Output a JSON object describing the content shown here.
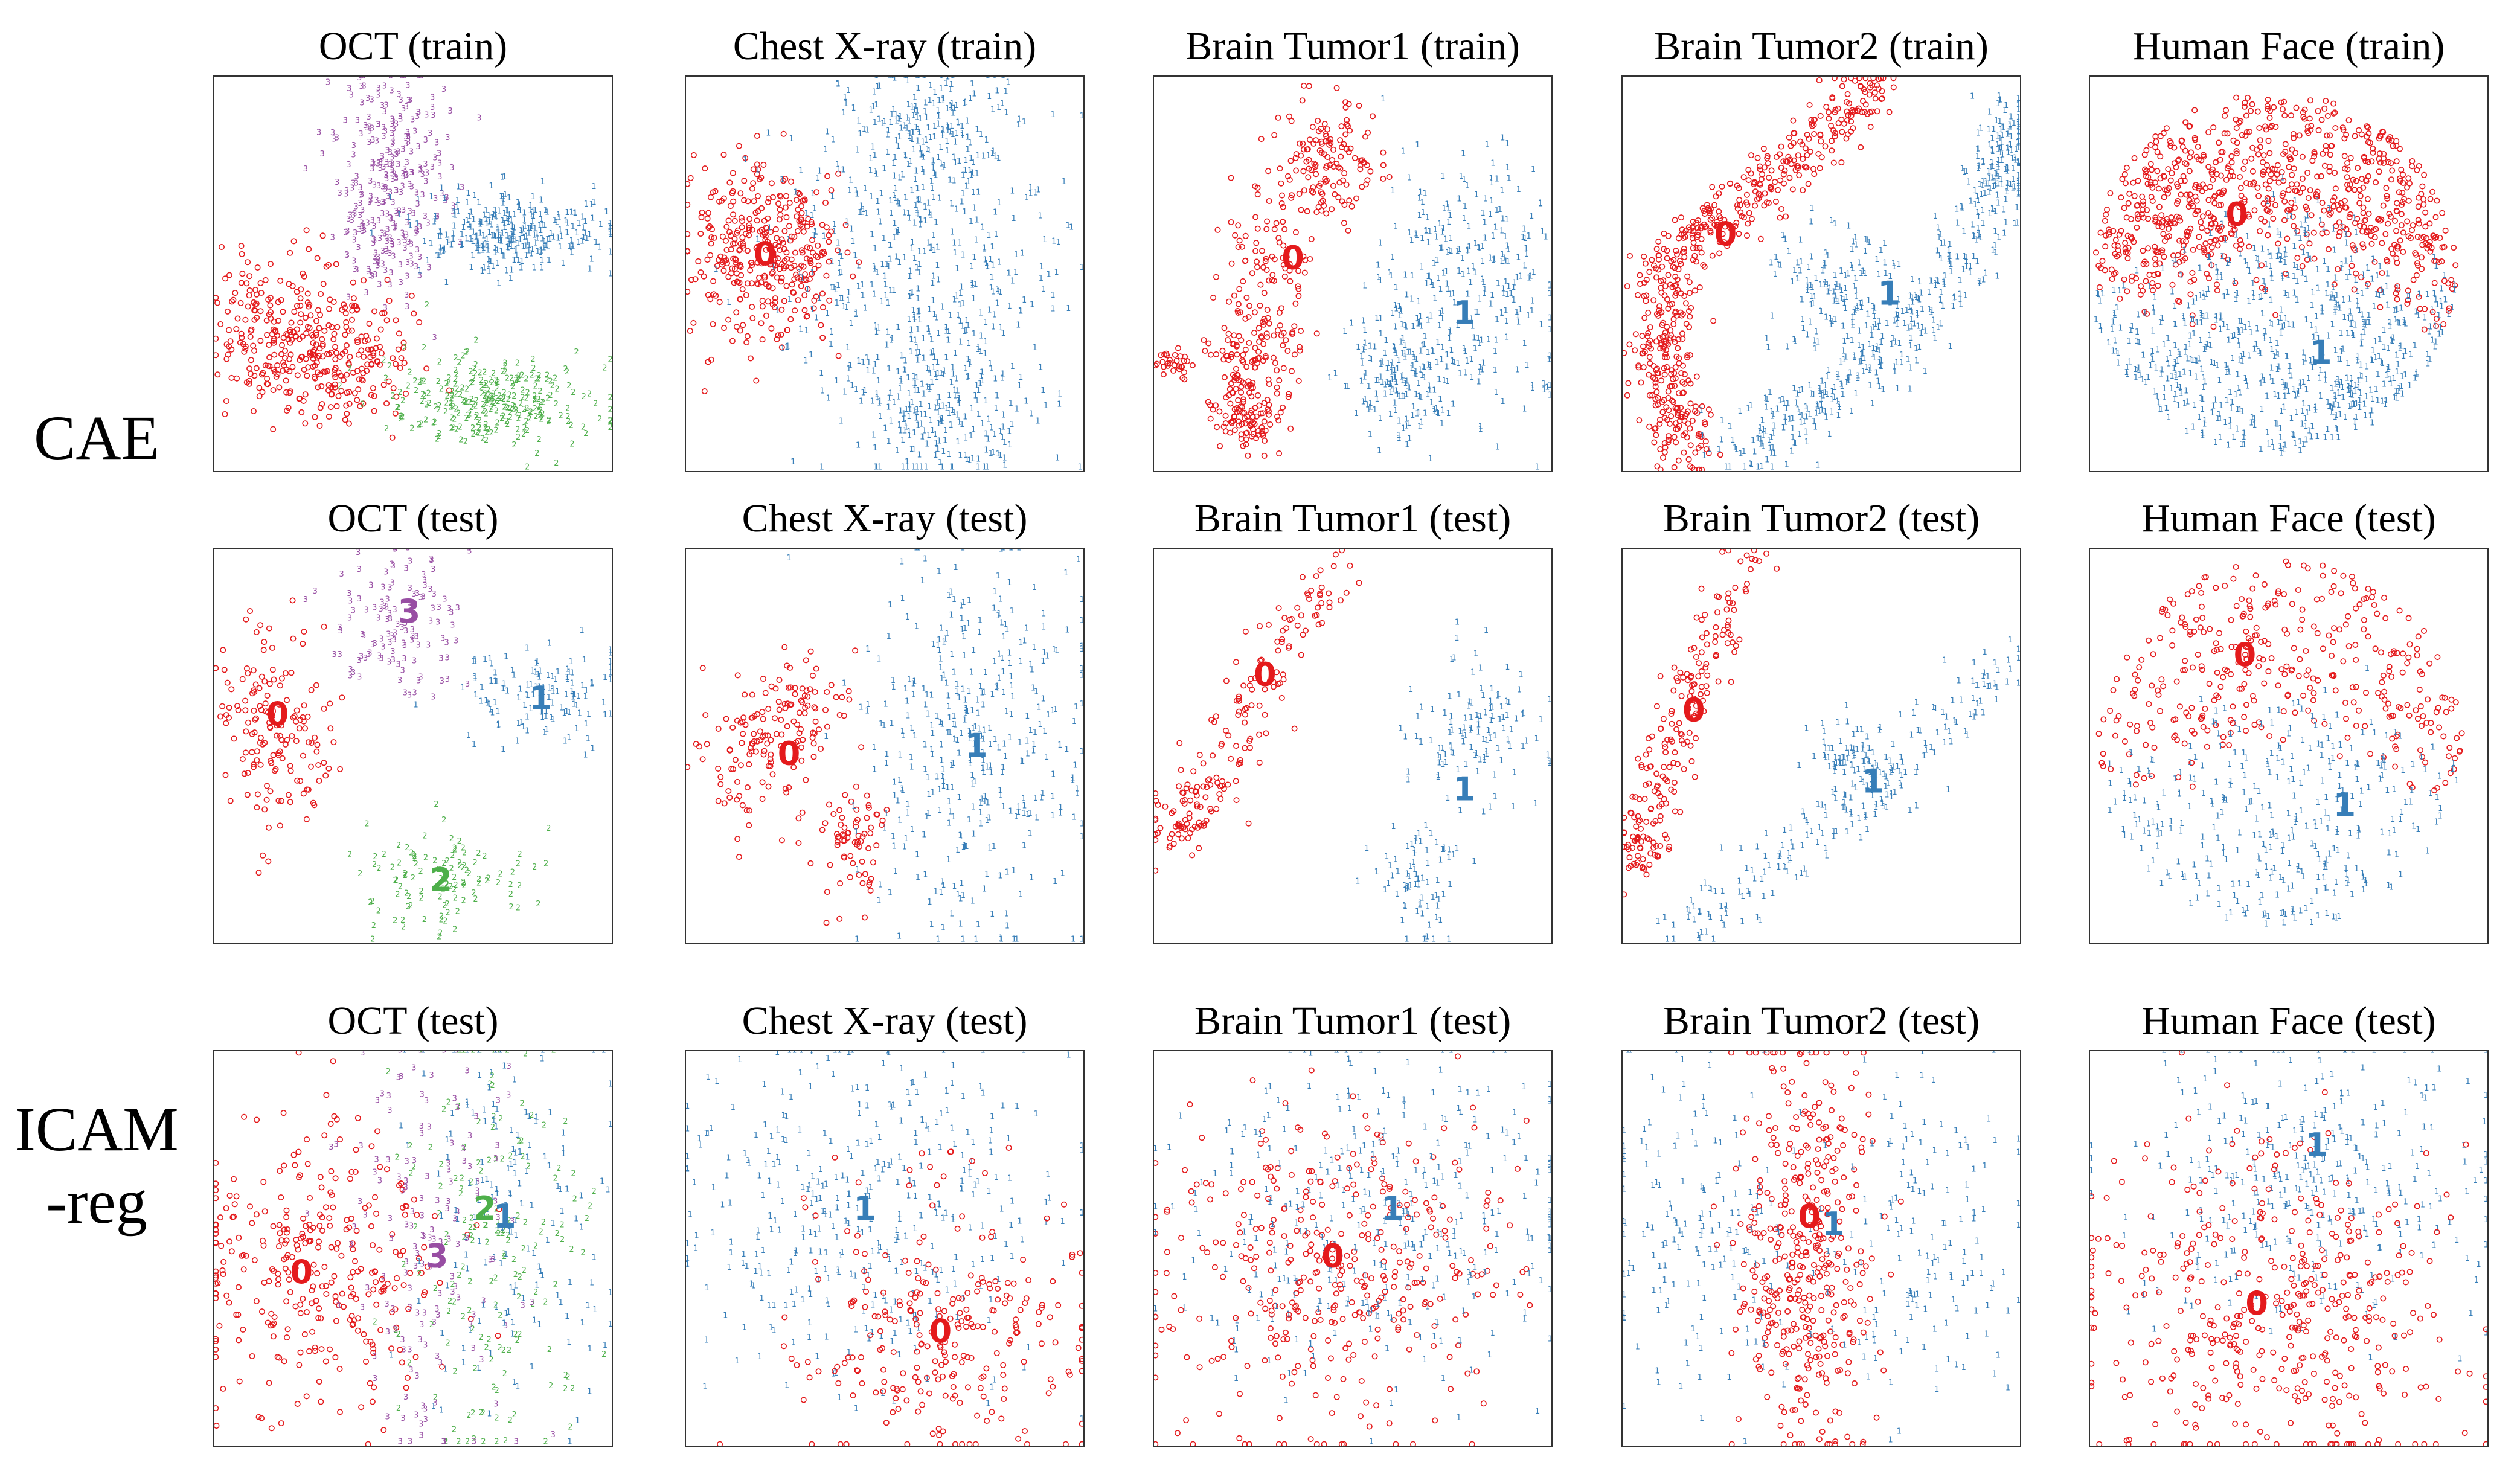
{
  "chart_data": {
    "type": "scatter",
    "figure_kind": "t-SNE embeddings grid",
    "class_colors": {
      "0": "#e41a1c",
      "1": "#377eb8",
      "2": "#4daf4a",
      "3": "#984ea3"
    },
    "row_labels": [
      {
        "row": 0,
        "lines": [
          "CAE"
        ]
      },
      {
        "row": 2,
        "lines": [
          "ICAM",
          "-reg"
        ]
      }
    ],
    "panels": [
      {
        "title": "OCT (train)",
        "row": 0,
        "col": 0,
        "clusters": [
          {
            "label": "0",
            "shape": "circle",
            "show_label": false,
            "n": 380,
            "blobs": [
              [
                0.15,
                0.64,
                0.08,
                0.1,
                1
              ],
              [
                0.33,
                0.71,
                0.08,
                0.09,
                1
              ]
            ]
          },
          {
            "label": "3",
            "shape": "digit",
            "show_label": false,
            "n": 300,
            "blobs": [
              [
                0.46,
                0.22,
                0.07,
                0.12,
                1
              ],
              [
                0.43,
                0.44,
                0.05,
                0.07,
                0.6
              ]
            ]
          },
          {
            "label": "1",
            "shape": "digit",
            "show_label": false,
            "n": 300,
            "blobs": [
              [
                0.74,
                0.4,
                0.12,
                0.05,
                1
              ]
            ]
          },
          {
            "label": "2",
            "shape": "digit",
            "show_label": false,
            "n": 280,
            "blobs": [
              [
                0.7,
                0.82,
                0.13,
                0.06,
                1
              ]
            ]
          }
        ]
      },
      {
        "title": "Chest X-ray (train)",
        "row": 0,
        "col": 1,
        "clusters": [
          {
            "label": "0",
            "shape": "circle",
            "show_label": true,
            "lx": 0.2,
            "ly": 0.45,
            "n": 360,
            "blobs": [
              [
                0.2,
                0.45,
                0.1,
                0.11,
                1
              ]
            ]
          },
          {
            "label": "1",
            "shape": "digit",
            "show_label": false,
            "n": 800,
            "blobs": [
              [
                0.58,
                0.5,
                0.17,
                0.22,
                1
              ],
              [
                0.6,
                0.14,
                0.1,
                0.08,
                0.4
              ],
              [
                0.65,
                0.86,
                0.1,
                0.09,
                0.4
              ]
            ]
          }
        ]
      },
      {
        "title": "Brain Tumor1 (train)",
        "row": 0,
        "col": 2,
        "clusters": [
          {
            "label": "0",
            "shape": "circle",
            "show_label": true,
            "lx": 0.35,
            "ly": 0.46,
            "n": 460,
            "blobs": [
              [
                0.44,
                0.22,
                0.06,
                0.07,
                1
              ],
              [
                0.29,
                0.52,
                0.06,
                0.15,
                1
              ],
              [
                0.22,
                0.76,
                0.05,
                0.07,
                0.6
              ],
              [
                0.05,
                0.73,
                0.02,
                0.02,
                0.2
              ],
              [
                0.25,
                0.88,
                0.05,
                0.04,
                0.5
              ]
            ]
          },
          {
            "label": "1",
            "shape": "digit",
            "show_label": true,
            "lx": 0.78,
            "ly": 0.6,
            "n": 430,
            "blobs": [
              [
                0.8,
                0.52,
                0.11,
                0.16,
                1
              ],
              [
                0.62,
                0.77,
                0.07,
                0.08,
                0.7
              ]
            ]
          }
        ]
      },
      {
        "title": "Brain Tumor2 (train)",
        "row": 0,
        "col": 3,
        "clusters": [
          {
            "label": "0",
            "shape": "circle",
            "show_label": true,
            "lx": 0.26,
            "ly": 0.4,
            "n": 560,
            "curve": [
              [
                0.64,
                0.03
              ],
              [
                0.38,
                0.25
              ],
              [
                0.13,
                0.45
              ],
              [
                0.09,
                0.72
              ],
              [
                0.18,
                0.96
              ]
            ],
            "spread": 0.04
          },
          {
            "label": "1",
            "shape": "digit",
            "show_label": true,
            "lx": 0.67,
            "ly": 0.55,
            "n": 600,
            "curve": [
              [
                0.26,
                0.96
              ],
              [
                0.5,
                0.83
              ],
              [
                0.75,
                0.64
              ],
              [
                0.93,
                0.3
              ],
              [
                0.97,
                0.1
              ]
            ],
            "spread": 0.04,
            "blobs": [
              [
                0.55,
                0.55,
                0.09,
                0.08,
                0.6
              ]
            ]
          }
        ]
      },
      {
        "title": "Human Face (train)",
        "row": 0,
        "col": 4,
        "clusters": [
          {
            "label": "0",
            "shape": "circle",
            "show_label": true,
            "lx": 0.37,
            "ly": 0.35,
            "n": 800,
            "disk": [
              0.46,
              0.5,
              0.46,
              0.46
            ],
            "region": "top"
          },
          {
            "label": "1",
            "shape": "digit",
            "show_label": true,
            "lx": 0.58,
            "ly": 0.7,
            "n": 700,
            "disk": [
              0.46,
              0.5,
              0.46,
              0.46
            ],
            "region": "bottom"
          }
        ]
      },
      {
        "title": "OCT (test)",
        "row": 1,
        "col": 0,
        "clusters": [
          {
            "label": "0",
            "shape": "circle",
            "show_label": true,
            "lx": 0.16,
            "ly": 0.42,
            "n": 160,
            "blobs": [
              [
                0.15,
                0.45,
                0.07,
                0.13,
                1
              ]
            ]
          },
          {
            "label": "3",
            "shape": "digit",
            "show_label": true,
            "lx": 0.49,
            "ly": 0.16,
            "n": 120,
            "blobs": [
              [
                0.47,
                0.2,
                0.08,
                0.1,
                1
              ]
            ]
          },
          {
            "label": "1",
            "shape": "digit",
            "show_label": true,
            "lx": 0.82,
            "ly": 0.38,
            "n": 130,
            "blobs": [
              [
                0.81,
                0.37,
                0.11,
                0.06,
                1
              ]
            ]
          },
          {
            "label": "2",
            "shape": "digit",
            "show_label": true,
            "lx": 0.57,
            "ly": 0.84,
            "n": 110,
            "blobs": [
              [
                0.57,
                0.84,
                0.11,
                0.07,
                1
              ]
            ]
          }
        ]
      },
      {
        "title": "Chest X-ray (test)",
        "row": 1,
        "col": 1,
        "clusters": [
          {
            "label": "0",
            "shape": "circle",
            "show_label": true,
            "lx": 0.26,
            "ly": 0.52,
            "n": 230,
            "blobs": [
              [
                0.18,
                0.52,
                0.07,
                0.09,
                1
              ],
              [
                0.3,
                0.4,
                0.05,
                0.06,
                0.6
              ],
              [
                0.42,
                0.74,
                0.05,
                0.07,
                0.7
              ]
            ]
          },
          {
            "label": "1",
            "shape": "digit",
            "show_label": true,
            "lx": 0.73,
            "ly": 0.5,
            "n": 380,
            "blobs": [
              [
                0.72,
                0.5,
                0.14,
                0.25,
                1
              ]
            ]
          }
        ]
      },
      {
        "title": "Brain Tumor1 (test)",
        "row": 1,
        "col": 2,
        "clusters": [
          {
            "label": "0",
            "shape": "circle",
            "show_label": true,
            "lx": 0.28,
            "ly": 0.32,
            "n": 190,
            "curve": [
              [
                0.48,
                0.03
              ],
              [
                0.33,
                0.22
              ],
              [
                0.22,
                0.45
              ],
              [
                0.1,
                0.65
              ],
              [
                0.05,
                0.75
              ]
            ],
            "spread": 0.04
          },
          {
            "label": "1",
            "shape": "digit",
            "show_label": true,
            "lx": 0.78,
            "ly": 0.61,
            "n": 200,
            "blobs": [
              [
                0.82,
                0.46,
                0.08,
                0.1,
                1
              ],
              [
                0.67,
                0.83,
                0.05,
                0.07,
                0.6
              ]
            ]
          }
        ]
      },
      {
        "title": "Brain Tumor2 (test)",
        "row": 1,
        "col": 3,
        "clusters": [
          {
            "label": "0",
            "shape": "circle",
            "show_label": true,
            "lx": 0.18,
            "ly": 0.41,
            "n": 220,
            "curve": [
              [
                0.31,
                0.02
              ],
              [
                0.22,
                0.25
              ],
              [
                0.12,
                0.5
              ],
              [
                0.05,
                0.7
              ],
              [
                0.04,
                0.82
              ]
            ],
            "spread": 0.035
          },
          {
            "label": "1",
            "shape": "digit",
            "show_label": true,
            "lx": 0.63,
            "ly": 0.59,
            "n": 280,
            "curve": [
              [
                0.15,
                0.97
              ],
              [
                0.45,
                0.77
              ],
              [
                0.7,
                0.55
              ],
              [
                0.98,
                0.28
              ]
            ],
            "spread": 0.04,
            "blobs": [
              [
                0.57,
                0.53,
                0.05,
                0.06,
                0.4
              ]
            ]
          }
        ]
      },
      {
        "title": "Human Face (test)",
        "row": 1,
        "col": 4,
        "clusters": [
          {
            "label": "0",
            "shape": "circle",
            "show_label": true,
            "lx": 0.39,
            "ly": 0.27,
            "n": 360,
            "disk": [
              0.48,
              0.5,
              0.46,
              0.47
            ],
            "region": "top"
          },
          {
            "label": "1",
            "shape": "digit",
            "show_label": true,
            "lx": 0.64,
            "ly": 0.65,
            "n": 340,
            "disk": [
              0.48,
              0.5,
              0.46,
              0.47
            ],
            "region": "bottom"
          }
        ]
      },
      {
        "title": "OCT (test)",
        "row": 2,
        "col": 0,
        "clusters": [
          {
            "label": "0",
            "shape": "circle",
            "show_label": true,
            "lx": 0.22,
            "ly": 0.56,
            "n": 320,
            "blobs": [
              [
                0.26,
                0.55,
                0.17,
                0.18,
                1
              ]
            ]
          },
          {
            "label": "2",
            "shape": "digit",
            "show_label": true,
            "lx": 0.68,
            "ly": 0.4,
            "n": 170,
            "blobs": [
              [
                0.7,
                0.45,
                0.12,
                0.28,
                1
              ]
            ]
          },
          {
            "label": "3",
            "shape": "digit",
            "show_label": true,
            "lx": 0.56,
            "ly": 0.52,
            "n": 150,
            "blobs": [
              [
                0.55,
                0.5,
                0.12,
                0.28,
                1
              ]
            ]
          },
          {
            "label": "1",
            "shape": "digit",
            "show_label": true,
            "lx": 0.73,
            "ly": 0.42,
            "n": 160,
            "blobs": [
              [
                0.74,
                0.45,
                0.12,
                0.28,
                1
              ]
            ]
          }
        ]
      },
      {
        "title": "Chest X-ray (test)",
        "row": 2,
        "col": 1,
        "clusters": [
          {
            "label": "1",
            "shape": "digit",
            "show_label": true,
            "lx": 0.45,
            "ly": 0.4,
            "n": 380,
            "blobs": [
              [
                0.45,
                0.4,
                0.24,
                0.22,
                1
              ]
            ]
          },
          {
            "label": "0",
            "shape": "circle",
            "show_label": true,
            "lx": 0.64,
            "ly": 0.71,
            "n": 260,
            "blobs": [
              [
                0.66,
                0.7,
                0.18,
                0.17,
                1
              ]
            ]
          }
        ]
      },
      {
        "title": "Brain Tumor1 (test)",
        "row": 2,
        "col": 2,
        "clusters": [
          {
            "label": "0",
            "shape": "circle",
            "show_label": true,
            "lx": 0.45,
            "ly": 0.52,
            "n": 380,
            "blobs": [
              [
                0.45,
                0.55,
                0.22,
                0.2,
                1
              ]
            ]
          },
          {
            "label": "1",
            "shape": "digit",
            "show_label": true,
            "lx": 0.6,
            "ly": 0.4,
            "n": 340,
            "blobs": [
              [
                0.55,
                0.42,
                0.25,
                0.22,
                1
              ]
            ]
          }
        ]
      },
      {
        "title": "Brain Tumor2 (test)",
        "row": 2,
        "col": 3,
        "clusters": [
          {
            "label": "0",
            "shape": "circle",
            "show_label": true,
            "lx": 0.47,
            "ly": 0.42,
            "n": 420,
            "blobs": [
              [
                0.46,
                0.5,
                0.08,
                0.26,
                1
              ]
            ]
          },
          {
            "label": "1",
            "shape": "digit",
            "show_label": true,
            "lx": 0.53,
            "ly": 0.44,
            "n": 320,
            "blobs": [
              [
                0.2,
                0.48,
                0.12,
                0.22,
                1
              ],
              [
                0.78,
                0.5,
                0.12,
                0.22,
                1
              ]
            ]
          }
        ]
      },
      {
        "title": "Human Face (test)",
        "row": 2,
        "col": 4,
        "clusters": [
          {
            "label": "1",
            "shape": "digit",
            "show_label": true,
            "lx": 0.57,
            "ly": 0.24,
            "n": 330,
            "blobs": [
              [
                0.55,
                0.32,
                0.22,
                0.18,
                1
              ]
            ]
          },
          {
            "label": "0",
            "shape": "circle",
            "show_label": true,
            "lx": 0.42,
            "ly": 0.64,
            "n": 440,
            "blobs": [
              [
                0.45,
                0.65,
                0.25,
                0.22,
                1
              ]
            ]
          }
        ]
      }
    ]
  }
}
